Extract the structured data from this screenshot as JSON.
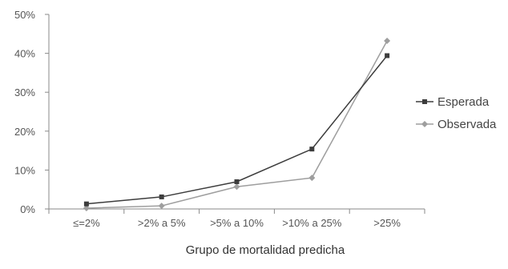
{
  "chart_data": {
    "type": "line",
    "title": "",
    "xlabel": "Grupo de mortalidad predicha",
    "ylabel": "",
    "categories": [
      "≤=2%",
      ">2% a 5%",
      ">5% a 10%",
      ">10% a 25%",
      ">25%"
    ],
    "ylim": [
      0,
      50
    ],
    "yticks": [
      0,
      10,
      20,
      30,
      40,
      50
    ],
    "ytick_suffix": "%",
    "grid": false,
    "legend_position": "right",
    "series": [
      {
        "name": "Esperada",
        "marker": "square",
        "color": "#3d3d3d",
        "values": [
          1.3,
          3.1,
          7.0,
          15.4,
          39.4
        ]
      },
      {
        "name": "Observada",
        "marker": "diamond",
        "color": "#9e9e9e",
        "values": [
          0.2,
          0.8,
          5.7,
          8.0,
          43.2
        ]
      }
    ]
  }
}
